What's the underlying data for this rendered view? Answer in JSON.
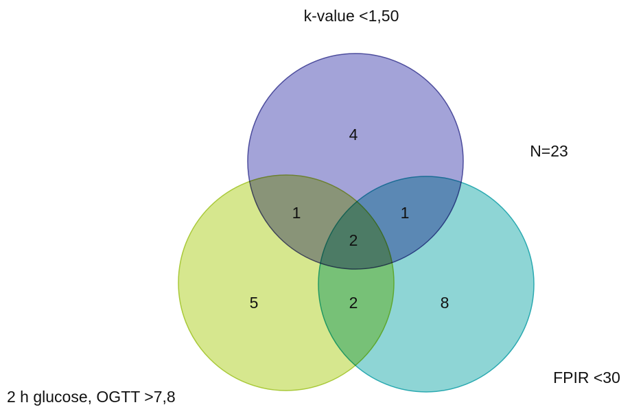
{
  "sets": [
    {
      "label": "k-value <1,50"
    },
    {
      "label": "2 h glucose, OGTT >7,8"
    },
    {
      "label": "FPIR <30"
    }
  ],
  "regions": [
    4,
    1,
    1,
    2,
    5,
    2,
    8
  ],
  "total": "N=23"
}
